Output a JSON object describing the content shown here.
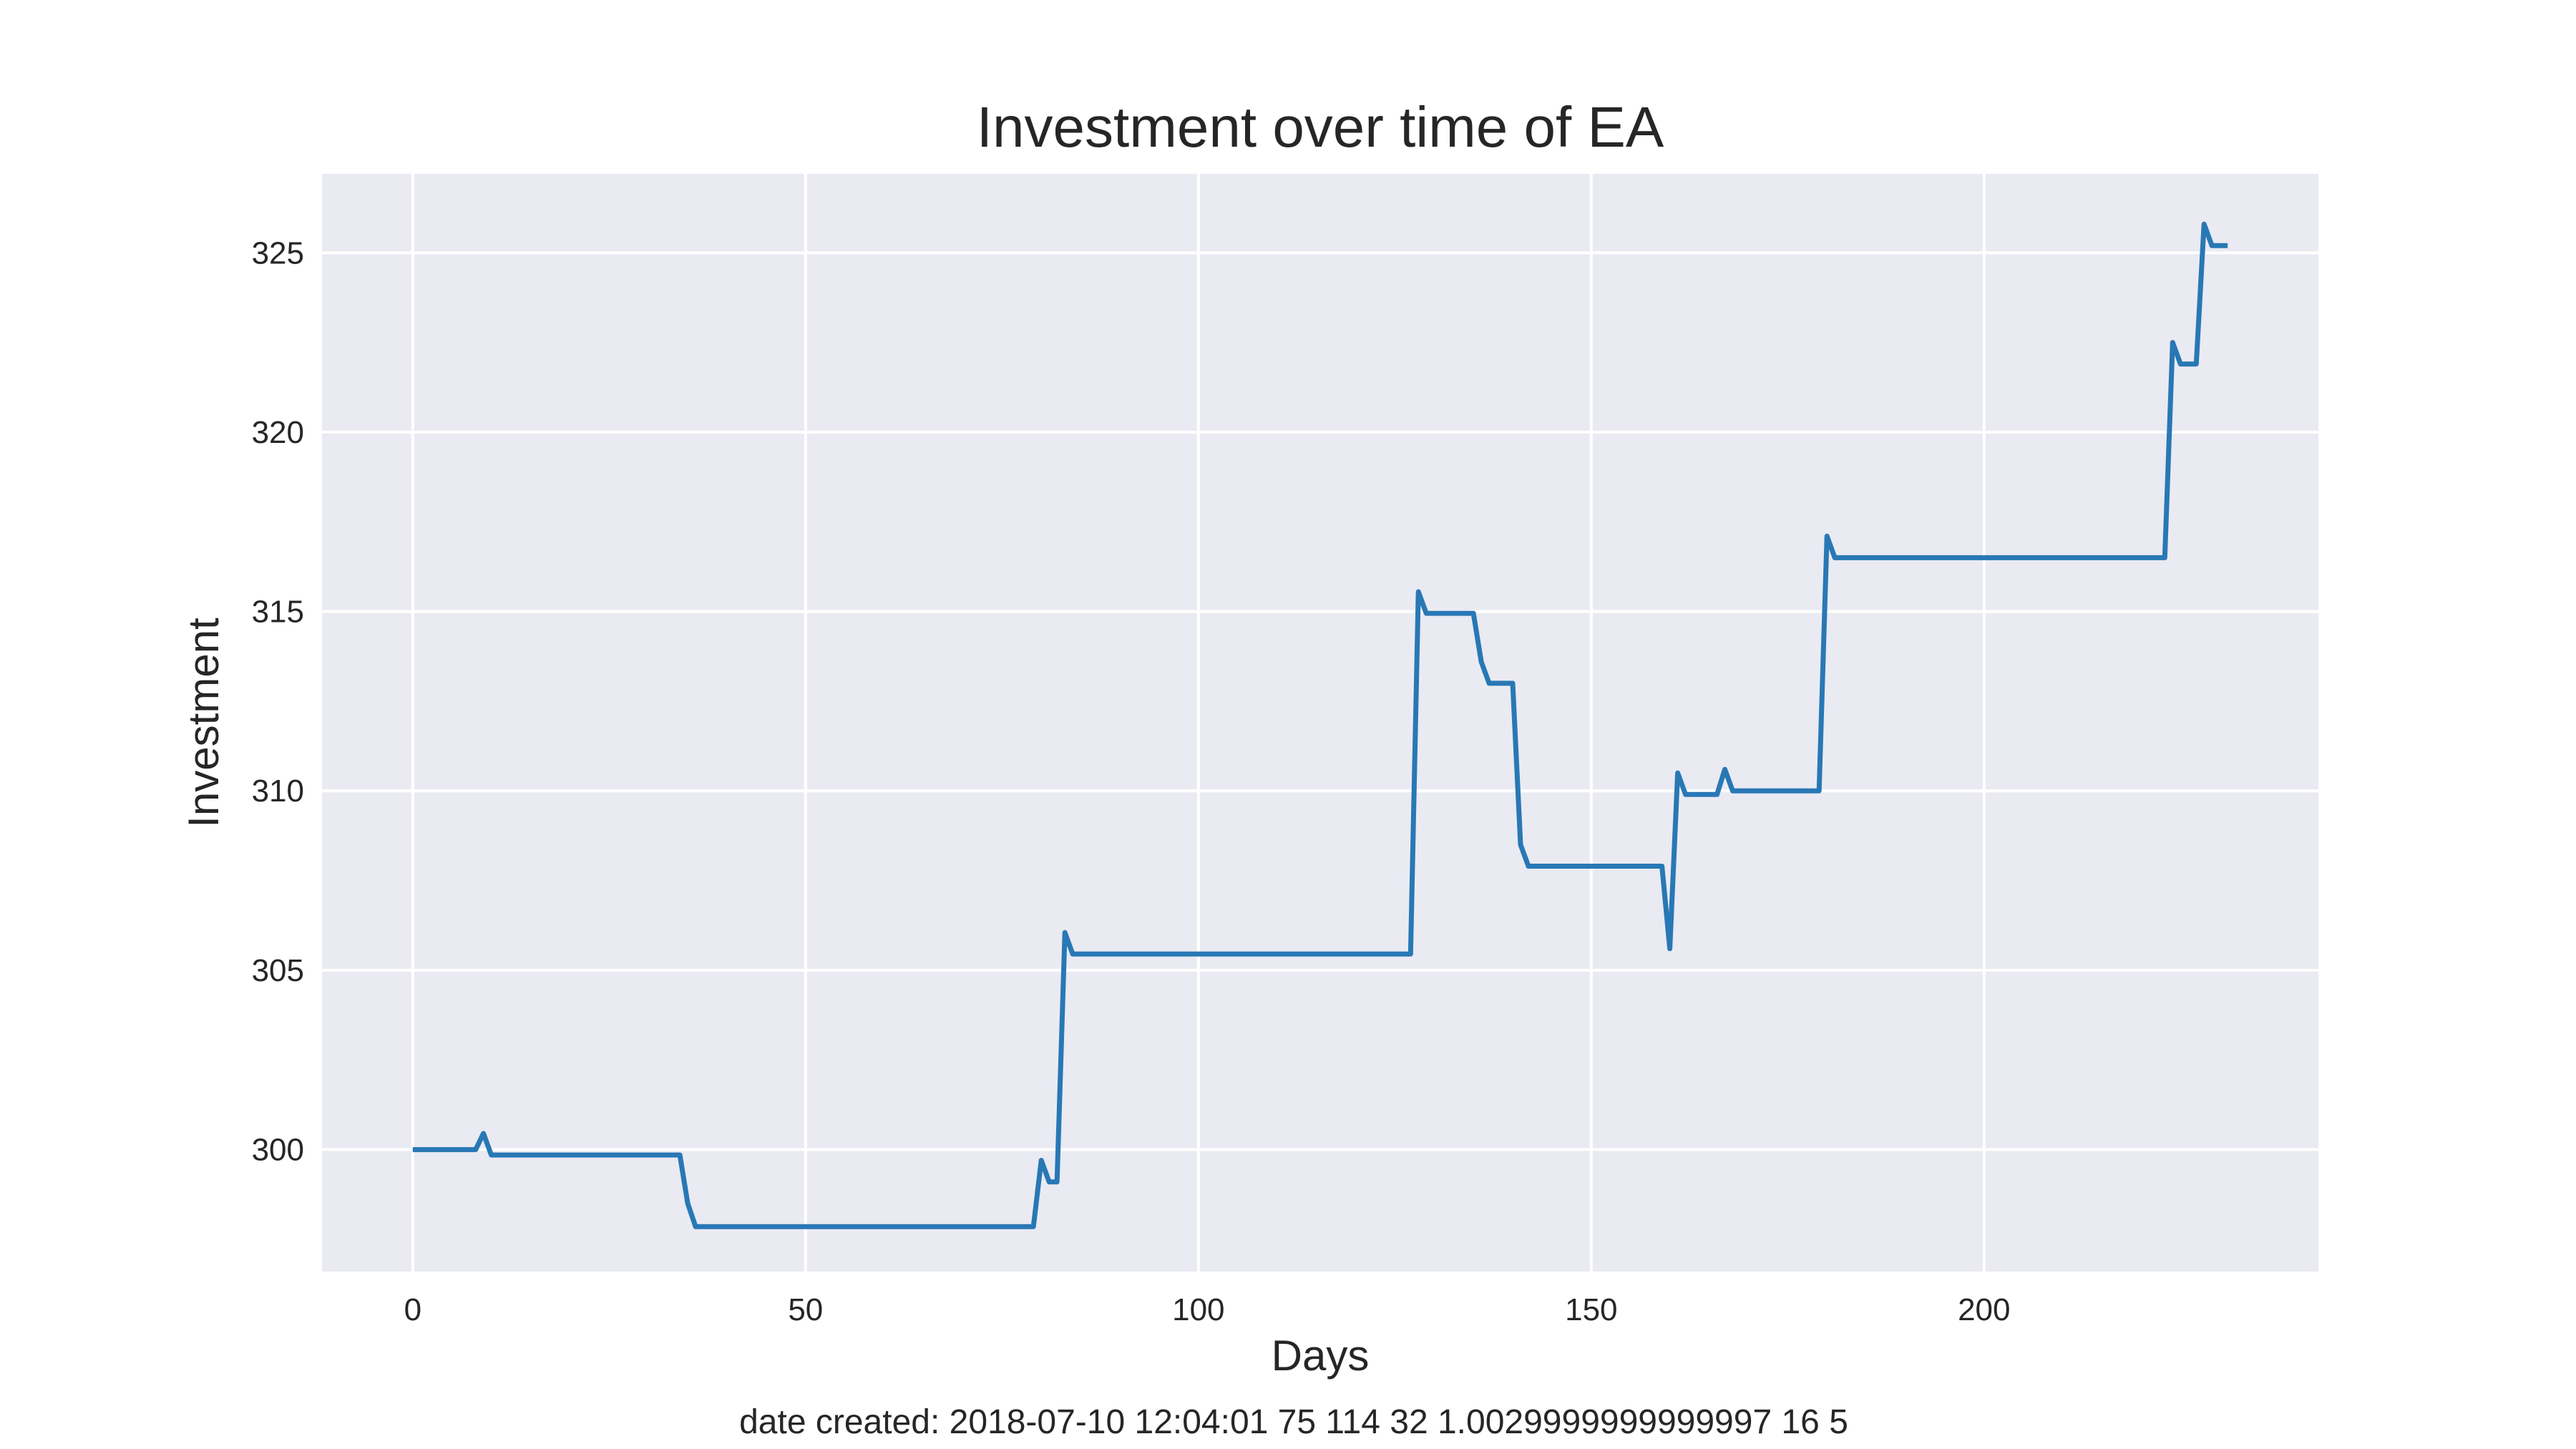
{
  "chart_data": {
    "type": "line",
    "title": "Investment over time of EA",
    "xlabel": "Days",
    "ylabel": "Investment",
    "xlim": [
      -11.55,
      242.55
    ],
    "ylim": [
      296.6,
      327.2
    ],
    "xticks": [
      0,
      50,
      100,
      150,
      200
    ],
    "yticks": [
      300,
      305,
      310,
      315,
      320,
      325
    ],
    "grid": true,
    "footnote": "date created: 2018-07-10 12:04:01 75 114 32 1.0029999999999997 16 5",
    "colors": {
      "plot_bg": "#EAEAF2",
      "grid": "#FFFFFF",
      "line": "#2878B5",
      "text": "#262626"
    },
    "series": [
      {
        "x": [
          0,
          8,
          9,
          10,
          34,
          35,
          36,
          79,
          80,
          81,
          82,
          83,
          84,
          127,
          128,
          129,
          135,
          136,
          137,
          140,
          141,
          142,
          159,
          160,
          161,
          162,
          166,
          167,
          168,
          179,
          180,
          181,
          223,
          224,
          225,
          227,
          228,
          229,
          231
        ],
        "y": [
          300.0,
          300.0,
          300.45,
          299.85,
          299.85,
          298.5,
          297.85,
          297.85,
          299.7,
          299.1,
          299.1,
          306.05,
          305.45,
          305.45,
          315.55,
          314.95,
          314.95,
          313.6,
          313.0,
          313.0,
          308.5,
          307.9,
          307.9,
          305.6,
          310.5,
          309.9,
          309.9,
          310.6,
          310.0,
          310.0,
          317.1,
          316.5,
          316.5,
          322.5,
          321.9,
          321.9,
          325.8,
          325.2,
          325.2
        ]
      }
    ]
  }
}
